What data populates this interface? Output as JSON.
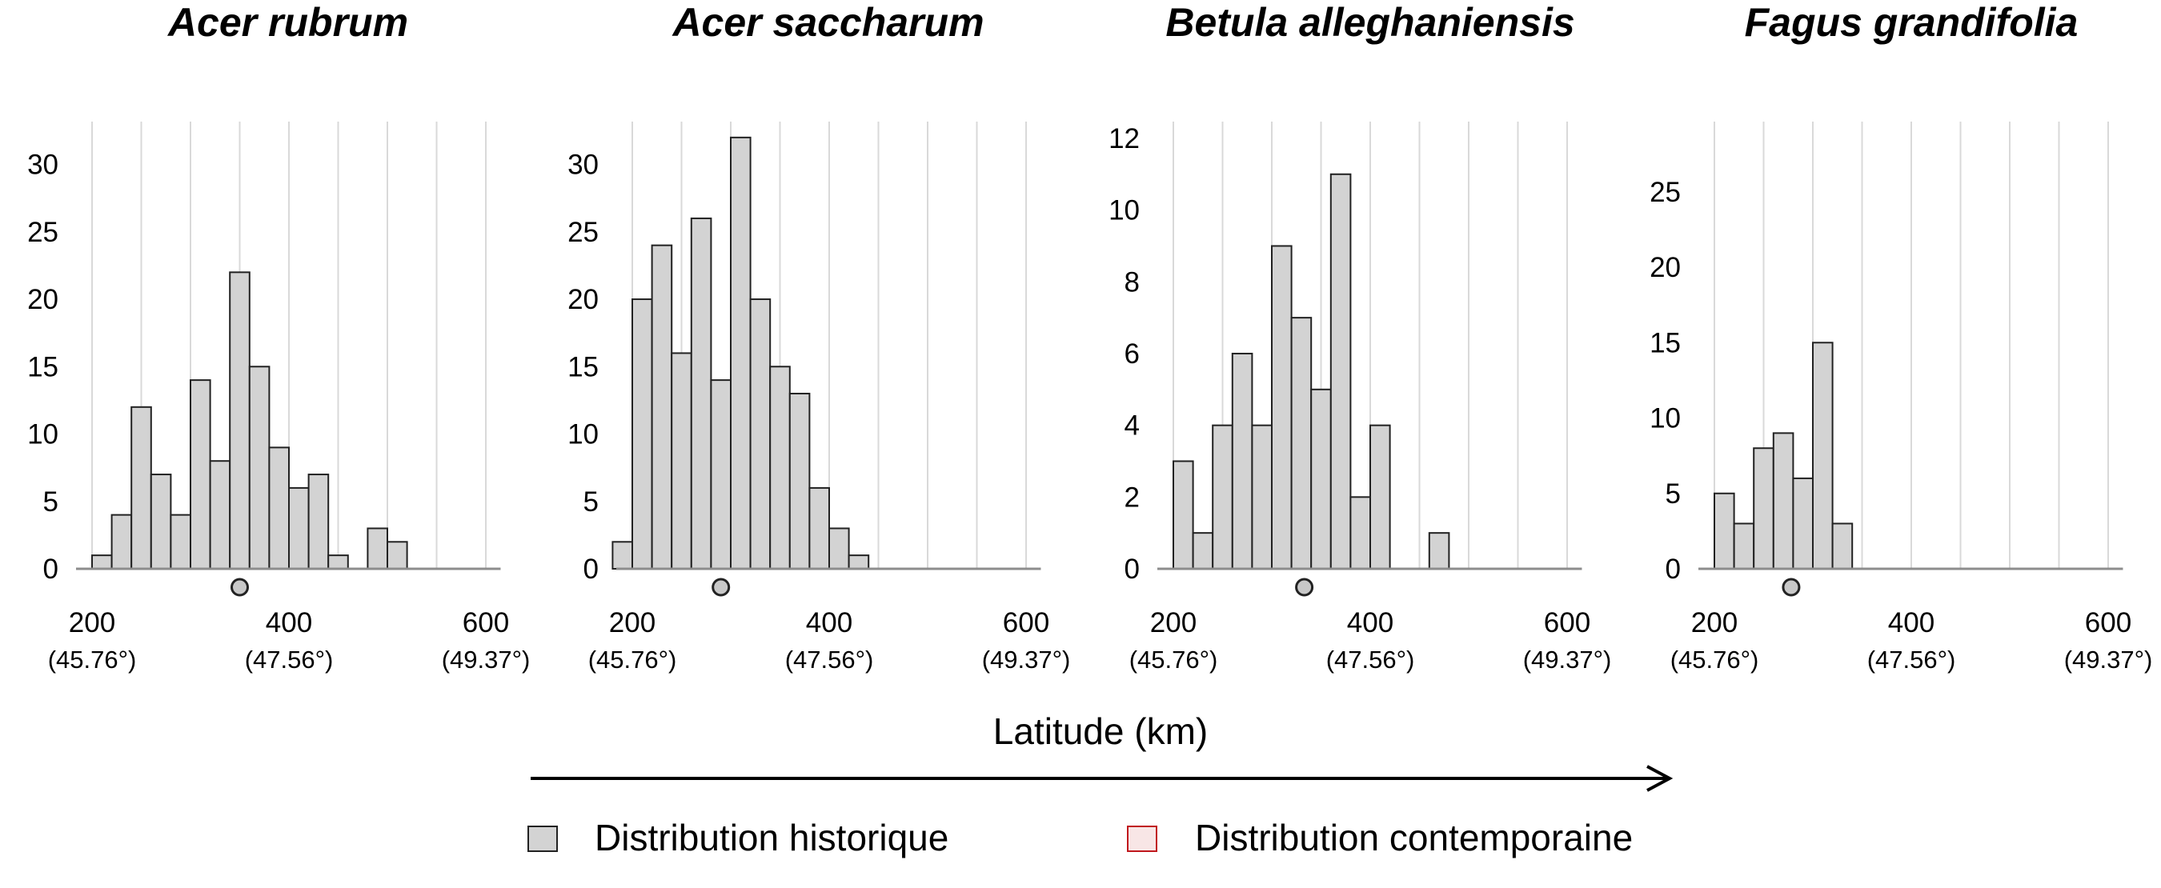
{
  "chart_data": {
    "type": "bar",
    "xlabel": "Latitude (km)",
    "legend": {
      "placement": "bottom",
      "items": [
        {
          "label": "Distribution historique",
          "fill": "#d3d3d3",
          "stroke": "#222222"
        },
        {
          "label": "Distribution contemporaine",
          "fill": "#f8e6e6",
          "stroke": "#c0181d"
        }
      ]
    },
    "x_ticks": [
      {
        "value": 200,
        "label": "200",
        "sublabel": "(45.76°)"
      },
      {
        "value": 400,
        "label": "400",
        "sublabel": "(47.56°)"
      },
      {
        "value": 600,
        "label": "600",
        "sublabel": "(49.37°)"
      }
    ],
    "xlim": [
      185,
      615
    ],
    "bin_width": 20,
    "panels": [
      {
        "title": "Acer rubrum",
        "ylim": [
          0,
          33
        ],
        "y_ticks": [
          0,
          5,
          10,
          15,
          20,
          25,
          30
        ],
        "bins_start": [
          200,
          220,
          240,
          260,
          280,
          300,
          320,
          340,
          360,
          380,
          400,
          420,
          440,
          460,
          480,
          500
        ],
        "values": [
          1,
          4,
          12,
          7,
          4,
          14,
          8,
          22,
          15,
          9,
          6,
          7,
          1,
          0,
          3,
          2
        ],
        "mean": 350
      },
      {
        "title": "Acer saccharum",
        "ylim": [
          0,
          33
        ],
        "y_ticks": [
          0,
          5,
          10,
          15,
          20,
          25,
          30
        ],
        "bins_start": [
          180,
          200,
          220,
          240,
          260,
          280,
          300,
          320,
          340,
          360,
          380,
          400,
          420
        ],
        "values": [
          2,
          20,
          24,
          16,
          26,
          14,
          32,
          20,
          15,
          13,
          6,
          3,
          1
        ],
        "mean": 290
      },
      {
        "title": "Betula alleghaniensis",
        "ylim": [
          0,
          12.4
        ],
        "y_ticks": [
          0,
          2,
          4,
          6,
          8,
          10,
          12
        ],
        "bins_start": [
          200,
          220,
          240,
          260,
          280,
          300,
          320,
          340,
          360,
          380,
          400,
          420,
          440,
          460
        ],
        "values": [
          3,
          1,
          4,
          6,
          4,
          9,
          7,
          5,
          11,
          2,
          4,
          0,
          0,
          1
        ],
        "mean": 333
      },
      {
        "title": "Fagus grandifolia",
        "ylim": [
          0,
          29.5
        ],
        "y_ticks": [
          0,
          5,
          10,
          15,
          20,
          25
        ],
        "bins_start": [
          200,
          220,
          240,
          260,
          280,
          300,
          320
        ],
        "values": [
          5,
          3,
          8,
          9,
          6,
          15,
          3
        ],
        "mean": 278
      }
    ]
  }
}
